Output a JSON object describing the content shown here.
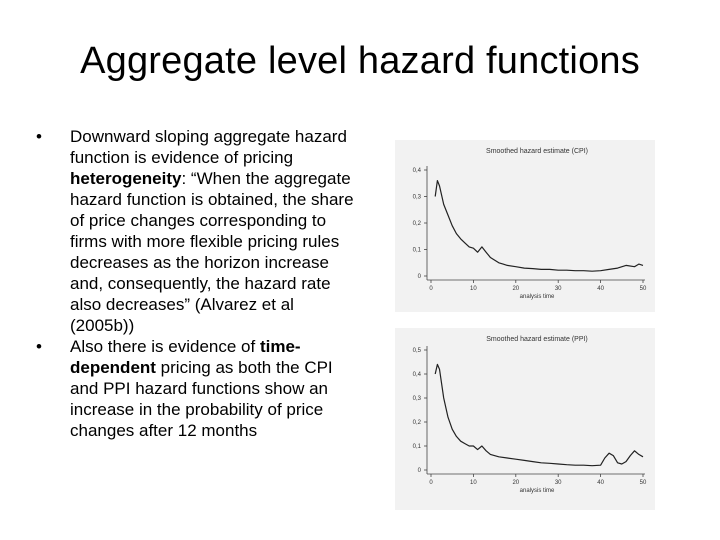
{
  "slide": {
    "title": "Aggregate level hazard functions",
    "bullet1": {
      "pre": "Downward sloping aggregate hazard function is evidence of pricing ",
      "bold": "heterogeneity",
      "post": ": “When the aggregate hazard function is obtained, the share of price changes corresponding to firms with more flexible pricing rules decreases as the horizon increase and, consequently, the hazard rate also decreases” (Alvarez et al (2005b))"
    },
    "bullet2": {
      "pre": "Also there is evidence of ",
      "bold": "time-dependent",
      "post": " pricing as both the CPI and PPI hazard functions show an increase in the probability of price changes after 12 months"
    },
    "bullet_symbol": "•"
  },
  "chart_data": [
    {
      "type": "line",
      "title": "Smoothed hazard estimate (CPI)",
      "xlabel": "analysis time",
      "ylabel": "",
      "xlim": [
        0,
        50
      ],
      "ylim": [
        0,
        0.4
      ],
      "xticks": [
        0,
        10,
        20,
        30,
        40,
        50
      ],
      "xtick_labels": [
        "0",
        "10",
        "20",
        "30",
        "40",
        "50"
      ],
      "yticks": [
        0,
        0.1,
        0.2,
        0.3,
        0.4
      ],
      "ytick_labels": [
        "0",
        "0,1",
        "0,2",
        "0,3",
        "0,4"
      ],
      "series": [
        {
          "x": [
            1,
            1.5,
            2,
            3,
            4,
            5,
            6,
            7,
            8,
            9,
            10,
            11,
            12,
            13,
            14,
            15,
            16,
            17,
            18,
            20,
            22,
            24,
            26,
            28,
            30,
            32,
            34,
            36,
            38,
            40,
            42,
            44,
            46,
            48,
            49,
            50
          ],
          "y": [
            0.3,
            0.36,
            0.34,
            0.27,
            0.23,
            0.19,
            0.16,
            0.14,
            0.125,
            0.11,
            0.105,
            0.09,
            0.11,
            0.09,
            0.07,
            0.06,
            0.05,
            0.045,
            0.04,
            0.035,
            0.03,
            0.028,
            0.025,
            0.025,
            0.022,
            0.022,
            0.02,
            0.02,
            0.018,
            0.02,
            0.025,
            0.03,
            0.04,
            0.035,
            0.045,
            0.04
          ]
        }
      ]
    },
    {
      "type": "line",
      "title": "Smoothed hazard estimate (PPI)",
      "xlabel": "analysis time",
      "ylabel": "",
      "xlim": [
        0,
        50
      ],
      "ylim": [
        0,
        0.5
      ],
      "xticks": [
        0,
        10,
        20,
        30,
        40,
        50
      ],
      "xtick_labels": [
        "0",
        "10",
        "20",
        "30",
        "40",
        "50"
      ],
      "yticks": [
        0,
        0.1,
        0.2,
        0.3,
        0.4,
        0.5
      ],
      "ytick_labels": [
        "0",
        "0,1",
        "0,2",
        "0,3",
        "0,4",
        "0,5"
      ],
      "series": [
        {
          "x": [
            1,
            1.5,
            2,
            3,
            4,
            5,
            6,
            7,
            8,
            9,
            10,
            11,
            12,
            13,
            14,
            16,
            18,
            20,
            22,
            24,
            26,
            28,
            30,
            32,
            34,
            36,
            38,
            40,
            41,
            42,
            43,
            44,
            45,
            46,
            47,
            48,
            49,
            50
          ],
          "y": [
            0.4,
            0.44,
            0.42,
            0.3,
            0.22,
            0.17,
            0.14,
            0.12,
            0.11,
            0.1,
            0.1,
            0.085,
            0.1,
            0.08,
            0.065,
            0.055,
            0.05,
            0.045,
            0.04,
            0.035,
            0.03,
            0.028,
            0.025,
            0.022,
            0.02,
            0.02,
            0.018,
            0.02,
            0.05,
            0.07,
            0.06,
            0.03,
            0.025,
            0.035,
            0.06,
            0.08,
            0.065,
            0.055
          ]
        }
      ]
    }
  ]
}
